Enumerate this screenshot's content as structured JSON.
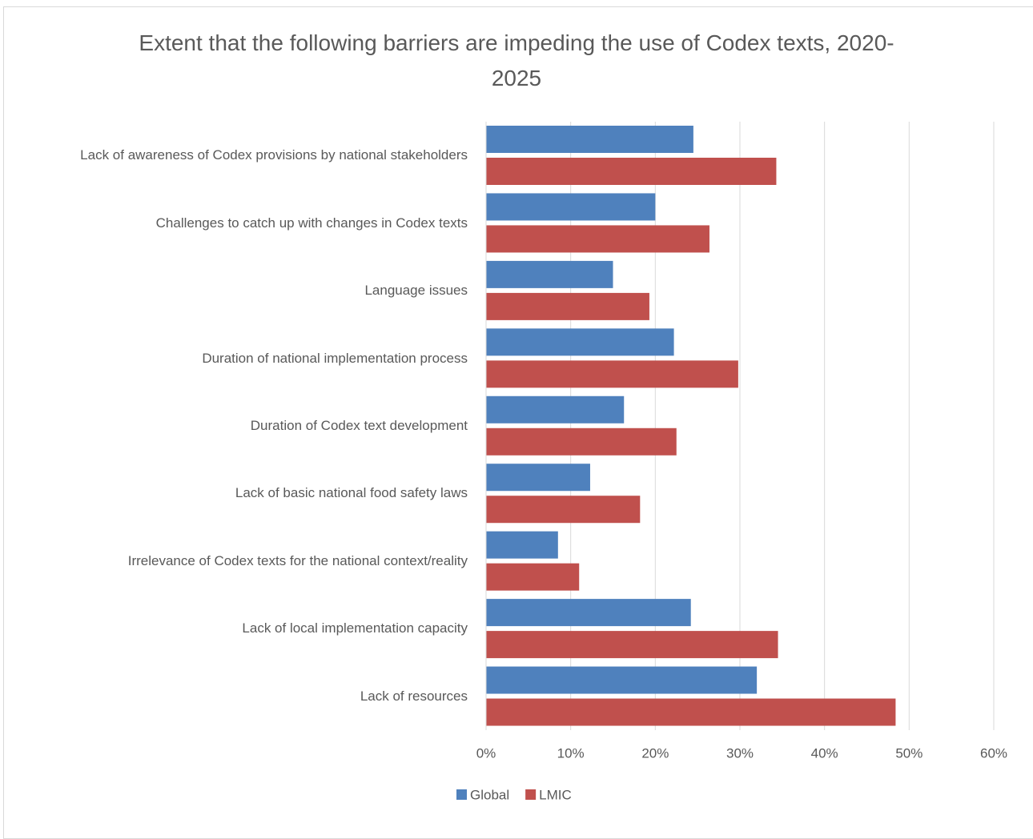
{
  "chart_data": {
    "type": "bar",
    "orientation": "horizontal",
    "title": "Extent that the following barriers are impeding the use of Codex texts, 2020-2025",
    "categories": [
      "Lack of awareness of Codex provisions by national stakeholders",
      "Challenges to catch up with changes in Codex texts",
      "Language issues",
      "Duration of national implementation process",
      "Duration of Codex text development",
      "Lack of basic national food safety laws",
      "Irrelevance of Codex texts for the national context/reality",
      "Lack of local implementation capacity",
      "Lack of resources"
    ],
    "series": [
      {
        "name": "Global",
        "color": "#4f81bd",
        "values": [
          24.5,
          20.0,
          15.0,
          22.2,
          16.3,
          12.3,
          8.5,
          24.2,
          32.0
        ]
      },
      {
        "name": "LMIC",
        "color": "#c0504d",
        "values": [
          34.3,
          26.4,
          19.3,
          29.8,
          22.5,
          18.2,
          11.0,
          34.5,
          48.4
        ]
      }
    ],
    "xlim": [
      0,
      60
    ],
    "xticks": [
      {
        "value": 0,
        "label": "0%"
      },
      {
        "value": 10,
        "label": "10%"
      },
      {
        "value": 20,
        "label": "20%"
      },
      {
        "value": 30,
        "label": "30%"
      },
      {
        "value": 40,
        "label": "40%"
      },
      {
        "value": 50,
        "label": "50%"
      },
      {
        "value": 60,
        "label": "60%"
      }
    ],
    "grid": true,
    "legend": "bottom"
  }
}
